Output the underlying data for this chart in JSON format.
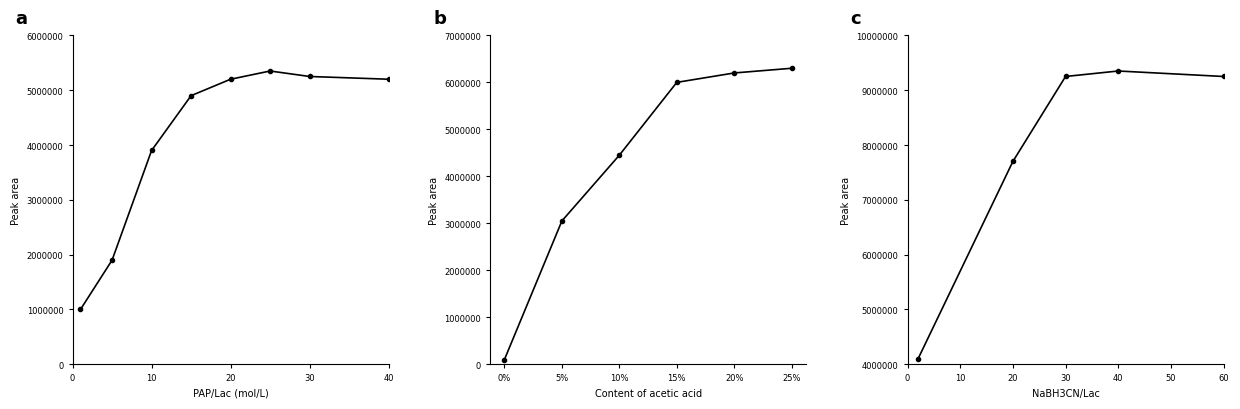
{
  "panel_a": {
    "label": "a",
    "x": [
      1,
      5,
      10,
      15,
      20,
      25,
      30,
      40
    ],
    "y": [
      1000000,
      1900000,
      3900000,
      4900000,
      5200000,
      5350000,
      5250000,
      5200000
    ],
    "xlabel": "PAP/Lac (mol/L)",
    "ylabel": "Peak area",
    "ylim": [
      0,
      6000000
    ],
    "xlim": [
      0,
      40
    ],
    "yticks": [
      0,
      1000000,
      2000000,
      3000000,
      4000000,
      5000000,
      6000000
    ],
    "xticks": [
      0,
      10,
      20,
      30,
      40
    ]
  },
  "panel_b": {
    "label": "b",
    "x": [
      0,
      1,
      2,
      3,
      4,
      5
    ],
    "y": [
      100000,
      3050000,
      4450000,
      6000000,
      6200000,
      6300000
    ],
    "xlabel": "Content of acetic acid",
    "ylabel": "Peak area",
    "ylim": [
      0,
      7000000
    ],
    "xticklabels": [
      "0%",
      "5%",
      "10%",
      "15%",
      "20%",
      "25%"
    ],
    "yticks": [
      0,
      1000000,
      2000000,
      3000000,
      4000000,
      5000000,
      6000000,
      7000000
    ]
  },
  "panel_c": {
    "label": "c",
    "x": [
      2,
      20,
      30,
      40,
      60
    ],
    "y": [
      4100000,
      7700000,
      9250000,
      9350000,
      9250000
    ],
    "xlabel": "NaBH3CN/Lac",
    "ylabel": "Peak area",
    "ylim": [
      4000000,
      10000000
    ],
    "xlim": [
      0,
      60
    ],
    "yticks": [
      4000000,
      5000000,
      6000000,
      7000000,
      8000000,
      9000000,
      10000000
    ],
    "xticks": [
      0,
      10,
      20,
      30,
      40,
      50,
      60
    ]
  },
  "line_color": "#000000",
  "marker": "o",
  "markersize": 3,
  "linewidth": 1.2,
  "label_fontsize": 13,
  "axis_label_fontsize": 7,
  "tick_fontsize": 6,
  "fig_width": 12.4,
  "fig_height": 4.1,
  "dpi": 100
}
